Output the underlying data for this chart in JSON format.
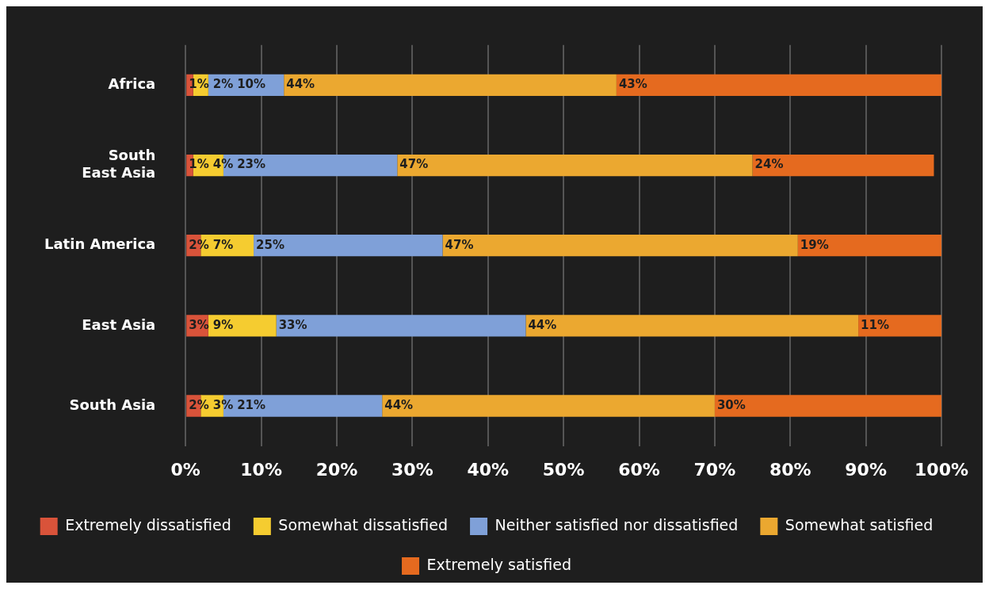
{
  "chart_data": {
    "type": "bar",
    "orientation": "horizontal",
    "stacked": true,
    "categories": [
      "Africa",
      "South East Asia",
      "Latin America",
      "East Asia",
      "South Asia"
    ],
    "series": [
      {
        "name": "Extremely dissatisfied",
        "color": "#d9533a",
        "values": [
          1,
          1,
          2,
          3,
          2
        ],
        "value_labels": [
          "1%",
          "1%",
          "2%",
          "3%",
          "2%"
        ]
      },
      {
        "name": "Somewhat dissatisfied",
        "color": "#f5cc30",
        "values": [
          2,
          4,
          7,
          9,
          3
        ],
        "value_labels": [
          "2%",
          "4%",
          "7%",
          "9%",
          "3%"
        ]
      },
      {
        "name": "Neither satisfied nor dissatisfied",
        "color": "#7fa0d8",
        "values": [
          10,
          23,
          25,
          33,
          21
        ],
        "value_labels": [
          "10%",
          "23%",
          "25%",
          "33%",
          "21%"
        ]
      },
      {
        "name": "Somewhat satisfied",
        "color": "#eba830",
        "values": [
          44,
          47,
          47,
          44,
          44
        ],
        "value_labels": [
          "44%",
          "47%",
          "47%",
          "44%",
          "44%"
        ]
      },
      {
        "name": "Extremely satisfied",
        "color": "#e56a1f",
        "values": [
          43,
          24,
          19,
          11,
          30
        ],
        "value_labels": [
          "43%",
          "24%",
          "19%",
          "11%",
          "30%"
        ]
      }
    ],
    "xlim": [
      0,
      100
    ],
    "xticks": [
      {
        "value": 0,
        "label": "0%"
      },
      {
        "value": 10,
        "label": "10%"
      },
      {
        "value": 20,
        "label": "20%"
      },
      {
        "value": 30,
        "label": "30%"
      },
      {
        "value": 40,
        "label": "40%"
      },
      {
        "value": 50,
        "label": "50%"
      },
      {
        "value": 60,
        "label": "60%"
      },
      {
        "value": 70,
        "label": "70%"
      },
      {
        "value": 80,
        "label": "80%"
      },
      {
        "value": 90,
        "label": "90%"
      },
      {
        "value": 100,
        "label": "100%"
      }
    ],
    "grid": "x",
    "legend": "bottom"
  }
}
